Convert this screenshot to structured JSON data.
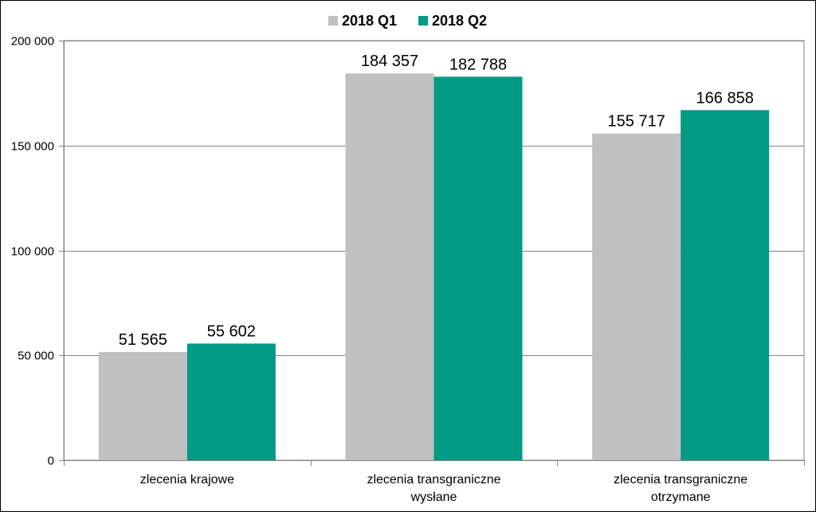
{
  "chart_data": {
    "type": "bar",
    "categories": [
      [
        "zlecenia krajowe"
      ],
      [
        "zlecenia transgraniczne",
        "wysłane"
      ],
      [
        "zlecenia transgraniczne",
        "otrzymane"
      ]
    ],
    "series": [
      {
        "name": "2018 Q1",
        "color": "#c0c0c0",
        "values": [
          51565,
          184357,
          155717
        ],
        "labels": [
          "51 565",
          "184 357",
          "155 717"
        ]
      },
      {
        "name": "2018 Q2",
        "color": "#009a85",
        "values": [
          55602,
          182788,
          166858
        ],
        "labels": [
          "55 602",
          "182 788",
          "166 858"
        ]
      }
    ],
    "ylim": [
      0,
      200000
    ],
    "yticks": [
      0,
      50000,
      100000,
      150000,
      200000
    ],
    "ytick_labels": [
      "0",
      "50 000",
      "100 000",
      "150 000",
      "200 000"
    ],
    "grid": true,
    "legend_position": "top-center"
  }
}
